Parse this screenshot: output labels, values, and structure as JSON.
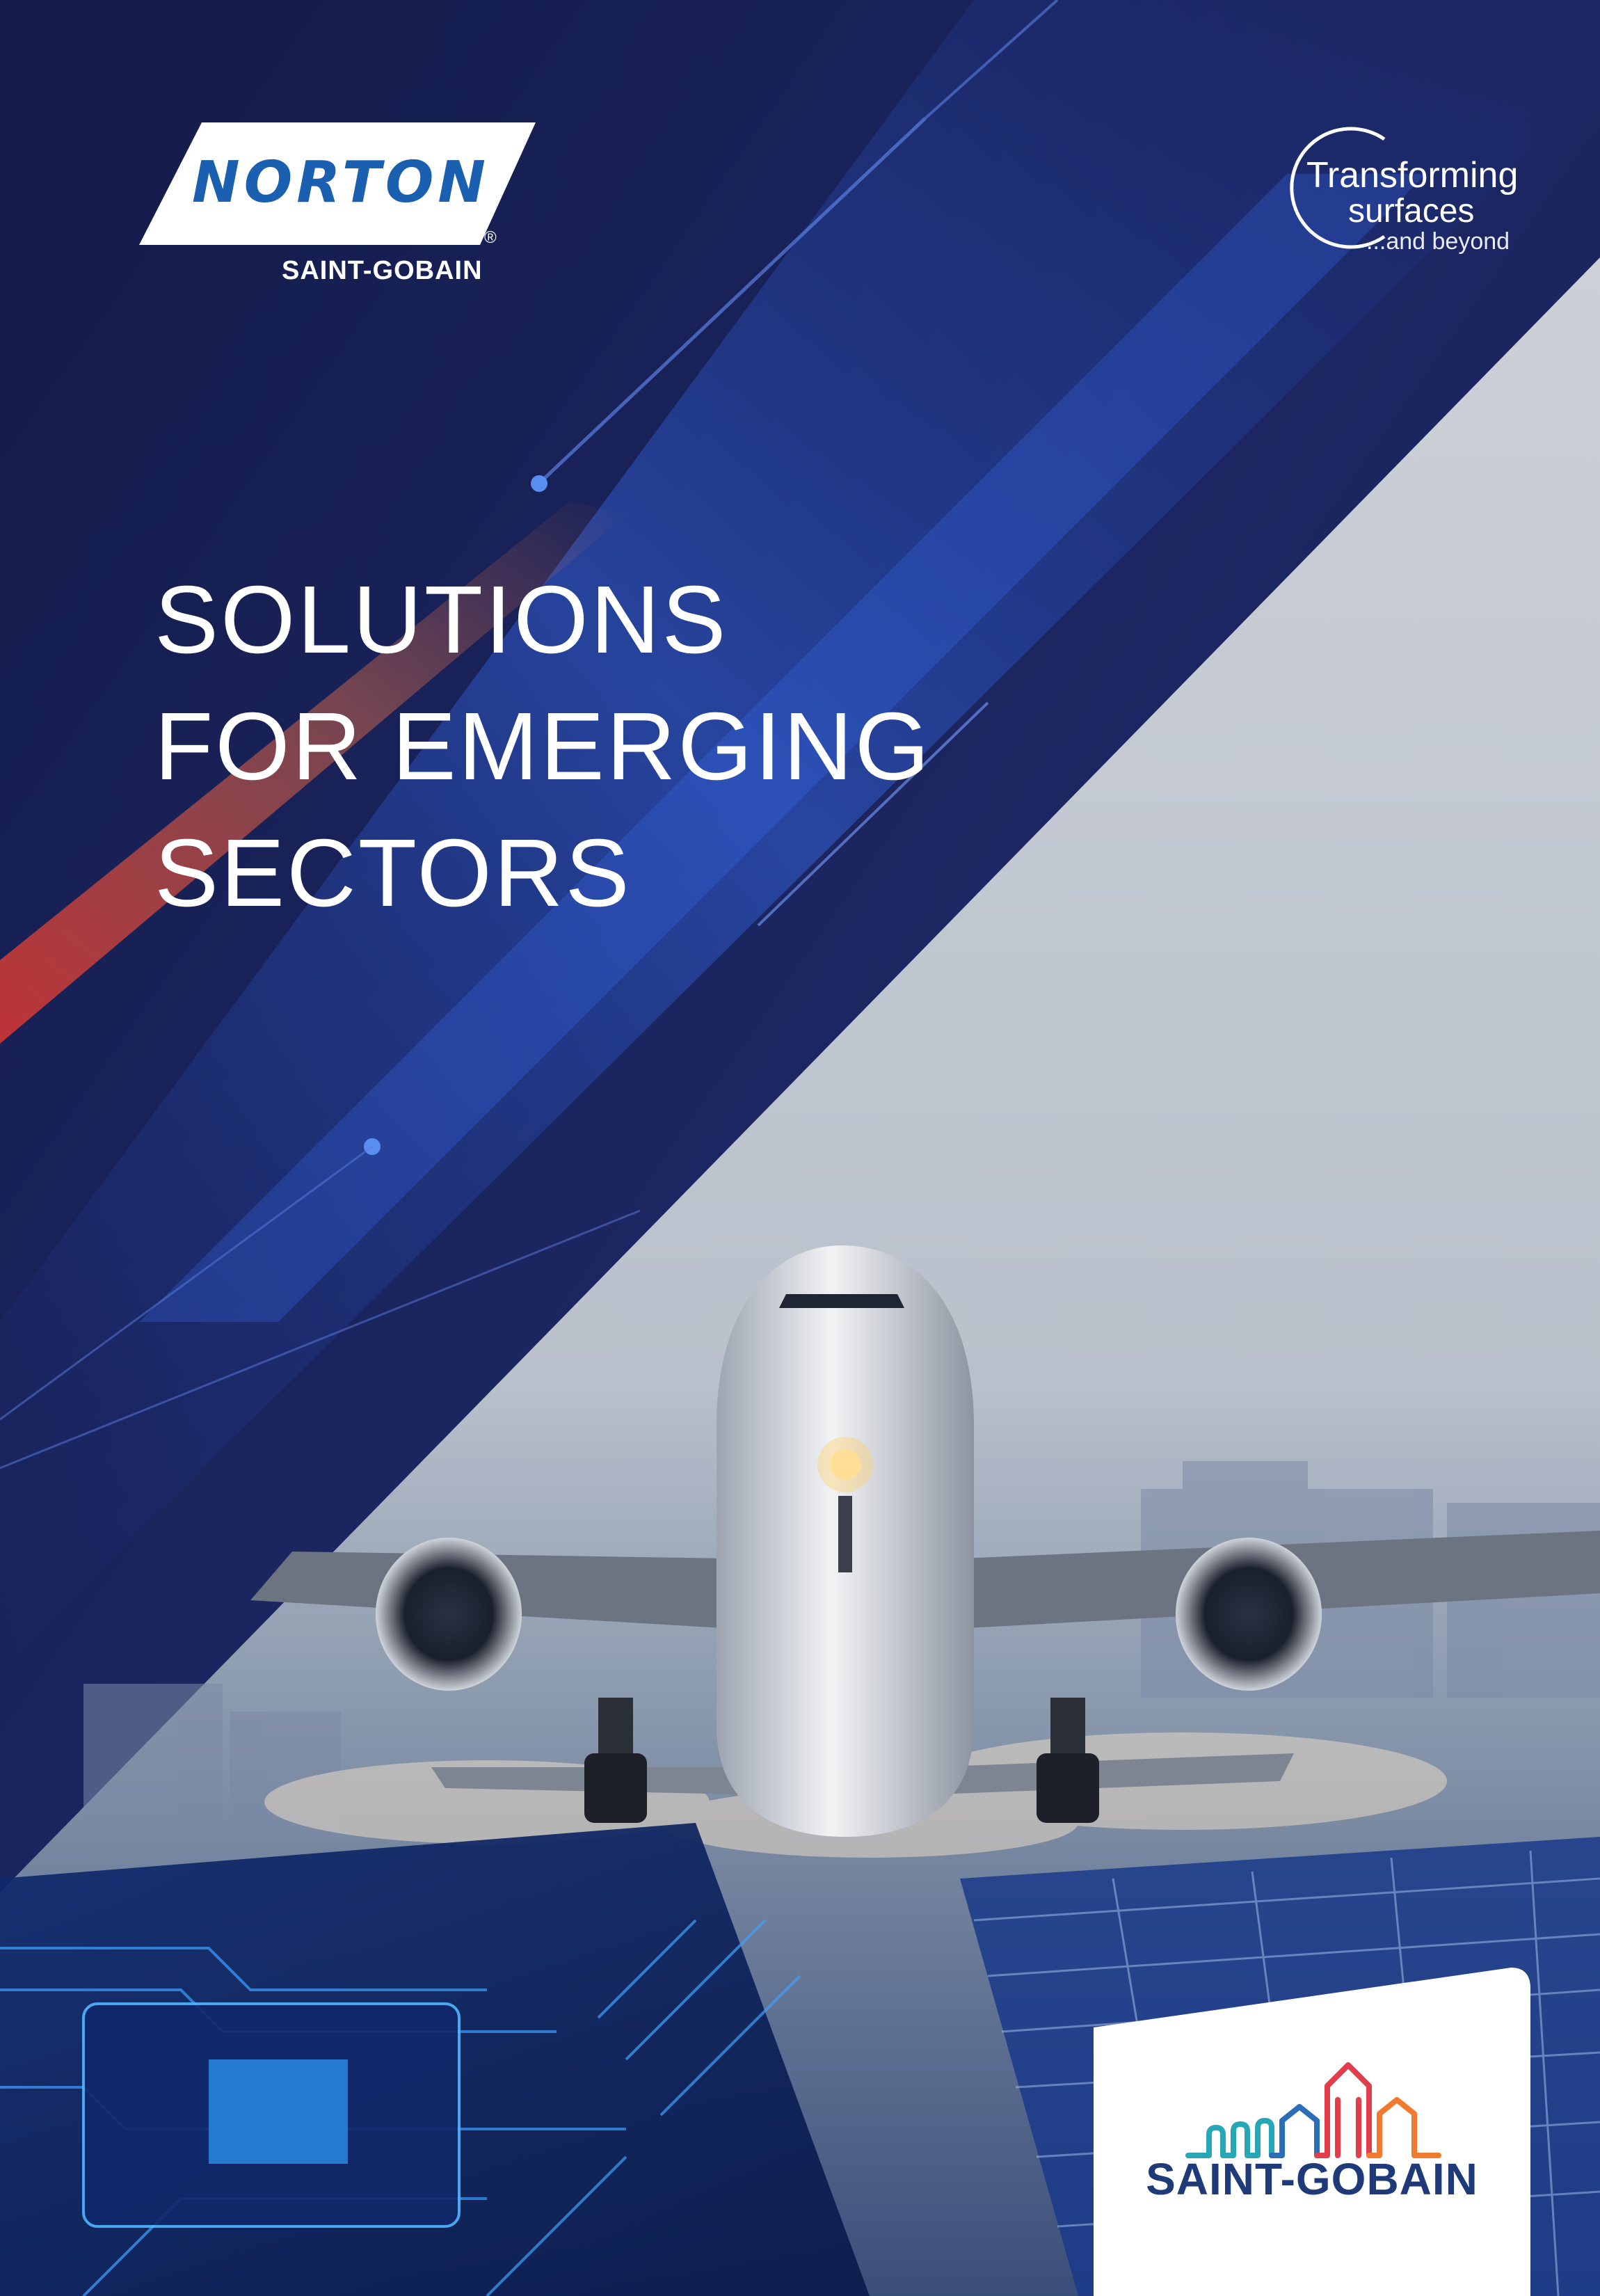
{
  "brand": {
    "name": "NORTON",
    "sub": "SAINT-GOBAIN",
    "registered": "®",
    "color": "#1a5fb0"
  },
  "tagline": {
    "line1": "Transforming",
    "line2": "surfaces",
    "line3": "...and beyond"
  },
  "headline": {
    "line1": "SOLUTIONS",
    "line2": "FOR EMERGING",
    "line3": "SECTORS"
  },
  "footer_logo": {
    "name": "SAINT-GOBAIN",
    "icon": "city-skyline-icon",
    "colors": [
      "#27a6b5",
      "#2c6fb8",
      "#e23d4b",
      "#f07a2d"
    ]
  },
  "colors": {
    "navy": "#1b2459",
    "accent_blue": "#2f63d8",
    "accent_red": "#ff5a3c",
    "sky": "#c9ccd4"
  }
}
